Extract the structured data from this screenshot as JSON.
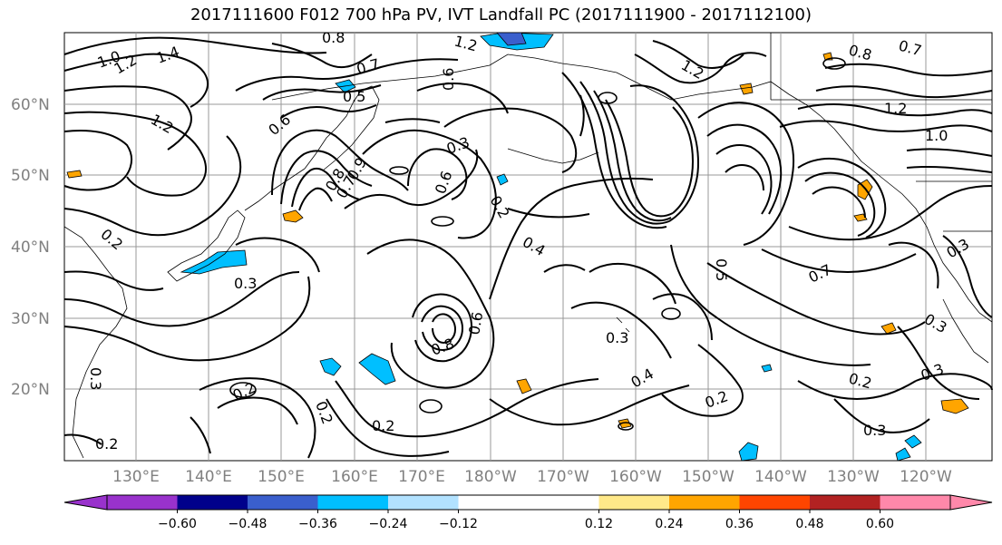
{
  "title": "2017111600 F012 700 hPa PV, IVT Landfall PC (2017111900 - 2017112100)",
  "lat_labels": [
    "60°N",
    "50°N",
    "40°N",
    "30°N",
    "20°N"
  ],
  "lon_labels": [
    "130°E",
    "140°E",
    "150°E",
    "160°E",
    "170°E",
    "180°W",
    "170°W",
    "160°W",
    "150°W",
    "140°W",
    "130°W",
    "120°W"
  ],
  "contour_labels": [
    "0.8",
    "1.2",
    "1.0",
    "1.4",
    "1.2",
    "0.7",
    "0.5",
    "0.6",
    "1.2",
    "0.6",
    "0.9",
    "0.8",
    "0.7",
    "0.3",
    "0.6",
    "0.2",
    "0.4",
    "0.5",
    "0.7",
    "1.2",
    "0.8",
    "0.7",
    "1.2",
    "1.0",
    "0.3",
    "0.3",
    "0.8",
    "0.6",
    "0.2",
    "0.3",
    "0.4",
    "0.2",
    "0.2",
    "0.2",
    "0.3",
    "0.3",
    "0.3",
    "0.2",
    "0.2",
    "0.3",
    "0.2"
  ],
  "colorbar": {
    "colors": [
      "#9932CC",
      "#00008B",
      "#3A5FCD",
      "#00BFFF",
      "#B2E2FF",
      "#FFFFFF",
      "#FFFFFF",
      "#FFE989",
      "#FFA500",
      "#FF4500",
      "#B22222",
      "#FF88AA"
    ],
    "ticks": [
      "−0.60",
      "−0.48",
      "−0.36",
      "−0.24",
      "−0.12",
      "0.12",
      "0.24",
      "0.36",
      "0.48",
      "0.60"
    ]
  }
}
